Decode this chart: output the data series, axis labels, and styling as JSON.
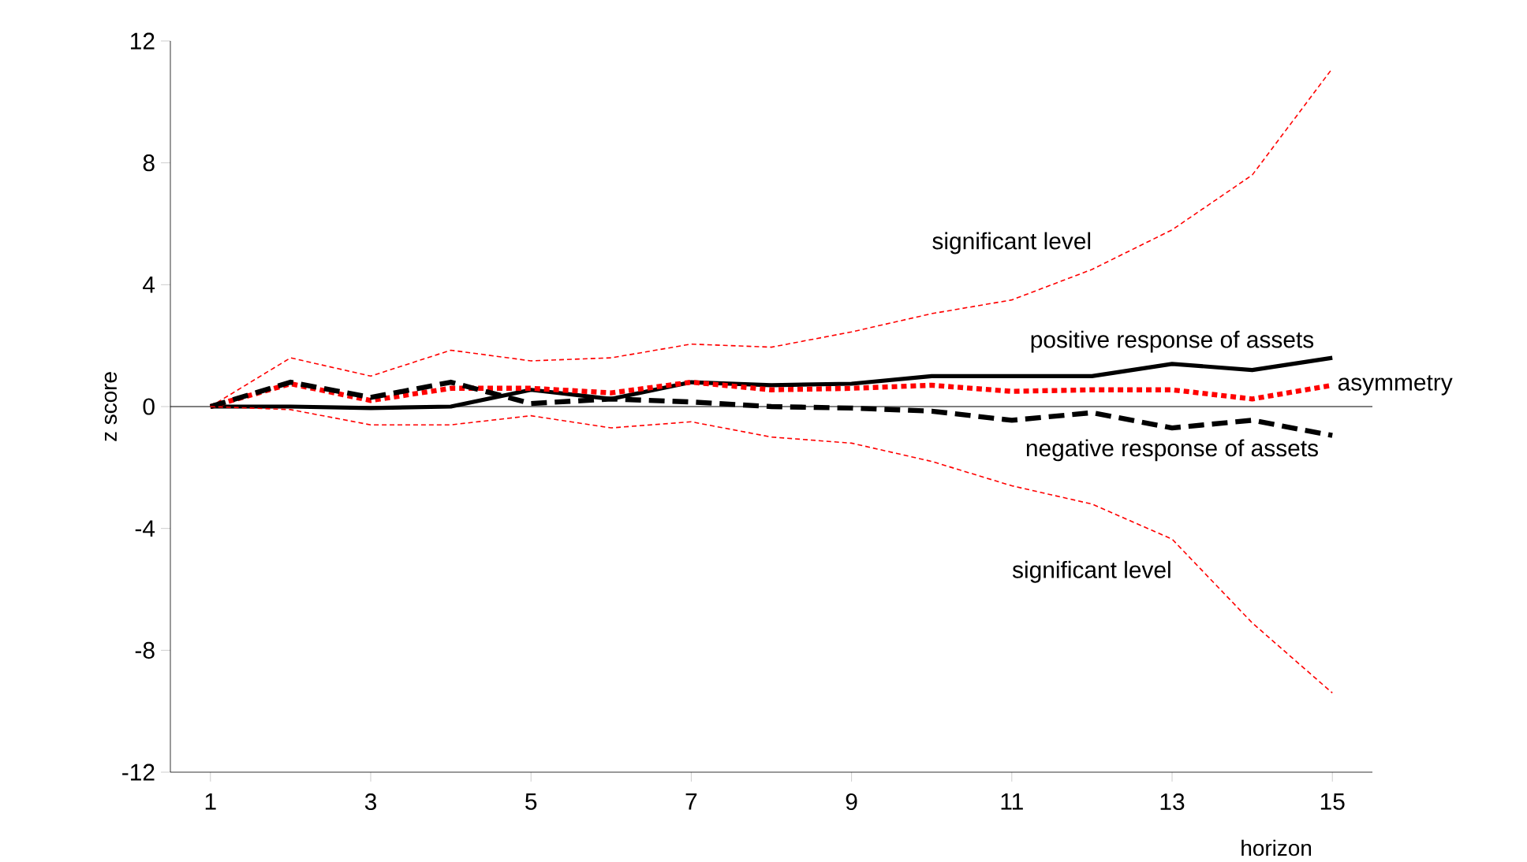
{
  "chart_data": {
    "type": "line",
    "xlabel": "horizon",
    "ylabel": "z score",
    "x": [
      1,
      2,
      3,
      4,
      5,
      6,
      7,
      8,
      9,
      10,
      11,
      12,
      13,
      14,
      15
    ],
    "xlim": [
      0.5,
      15.5
    ],
    "xticks": [
      1,
      3,
      5,
      7,
      9,
      11,
      13,
      15
    ],
    "ylim": [
      -12,
      12
    ],
    "yticks": [
      -12,
      -8,
      -4,
      0,
      4,
      8,
      12
    ],
    "ref_lines": [
      {
        "axis": "y",
        "value": 0,
        "color": "#000000"
      }
    ],
    "legend": false,
    "series": [
      {
        "name": "significant level",
        "color": "#ff0000",
        "line_style": "dashed",
        "values": [
          0,
          1.6,
          1.0,
          1.85,
          1.5,
          1.6,
          2.05,
          1.95,
          2.45,
          3.05,
          3.5,
          4.5,
          5.8,
          7.6,
          11.1
        ]
      },
      {
        "name": "positive response of assets",
        "color": "#000000",
        "line_style": "solid",
        "values": [
          0,
          0,
          -0.05,
          0,
          0.55,
          0.25,
          0.8,
          0.7,
          0.75,
          1.0,
          1.0,
          1.0,
          1.4,
          1.2,
          1.6
        ]
      },
      {
        "name": "asymmetry",
        "color": "#ff0000",
        "line_style": "dotted",
        "values": [
          0,
          0.75,
          0.2,
          0.6,
          0.6,
          0.45,
          0.8,
          0.55,
          0.6,
          0.7,
          0.5,
          0.55,
          0.55,
          0.25,
          0.7
        ]
      },
      {
        "name": "negative response of assets",
        "color": "#000000",
        "line_style": "dashed",
        "values": [
          0,
          0.8,
          0.3,
          0.8,
          0.1,
          0.25,
          0.15,
          0,
          -0.05,
          -0.15,
          -0.45,
          -0.2,
          -0.7,
          -0.45,
          -0.95
        ]
      },
      {
        "name": "significant level",
        "color": "#ff0000",
        "line_style": "dashed",
        "values": [
          0,
          -0.1,
          -0.6,
          -0.6,
          -0.3,
          -0.7,
          -0.5,
          -1.0,
          -1.2,
          -1.8,
          -2.6,
          -3.2,
          -4.35,
          -7.1,
          -9.4
        ]
      }
    ]
  }
}
